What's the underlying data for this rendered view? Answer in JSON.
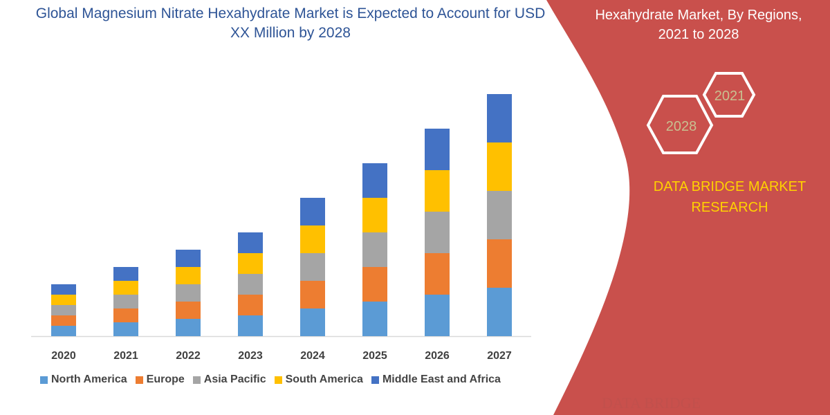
{
  "title": "Global Magnesium Nitrate Hexahydrate Market is Expected to Account for USD XX Million by 2028",
  "side_panel": {
    "title_lines": [
      "Hexahydrate Market, By Regions,",
      "2021 to 2028"
    ],
    "hex_years": [
      "2021",
      "2028"
    ],
    "brand_lines": [
      "DATA BRIDGE MARKET",
      "RESEARCH"
    ],
    "logo_text": "DATA BRIDGE",
    "panel_color": "#c9504c",
    "brand_color": "#ffd200"
  },
  "chart_data": {
    "type": "bar",
    "stacked": true,
    "title": "Global Magnesium Nitrate Hexahydrate Market is Expected to Account for USD XX Million by 2028",
    "xlabel": "",
    "ylabel": "",
    "y_axis_visible": false,
    "grid": false,
    "legend_position": "bottom",
    "categories": [
      "2020",
      "2021",
      "2022",
      "2023",
      "2024",
      "2025",
      "2026",
      "2027"
    ],
    "ylim": [
      0,
      350
    ],
    "series": [
      {
        "name": "North America",
        "color": "#5b9bd5",
        "values": [
          15,
          20,
          25,
          30,
          40,
          50,
          60,
          70
        ]
      },
      {
        "name": "Europe",
        "color": "#ed7d31",
        "values": [
          15,
          20,
          25,
          30,
          40,
          50,
          60,
          70
        ]
      },
      {
        "name": "Asia Pacific",
        "color": "#a5a5a5",
        "values": [
          15,
          20,
          25,
          30,
          40,
          50,
          60,
          70
        ]
      },
      {
        "name": "South America",
        "color": "#ffc000",
        "values": [
          15,
          20,
          25,
          30,
          40,
          50,
          60,
          70
        ]
      },
      {
        "name": "Middle East and Africa",
        "color": "#4472c4",
        "values": [
          15,
          20,
          25,
          30,
          40,
          50,
          60,
          70
        ]
      }
    ]
  }
}
